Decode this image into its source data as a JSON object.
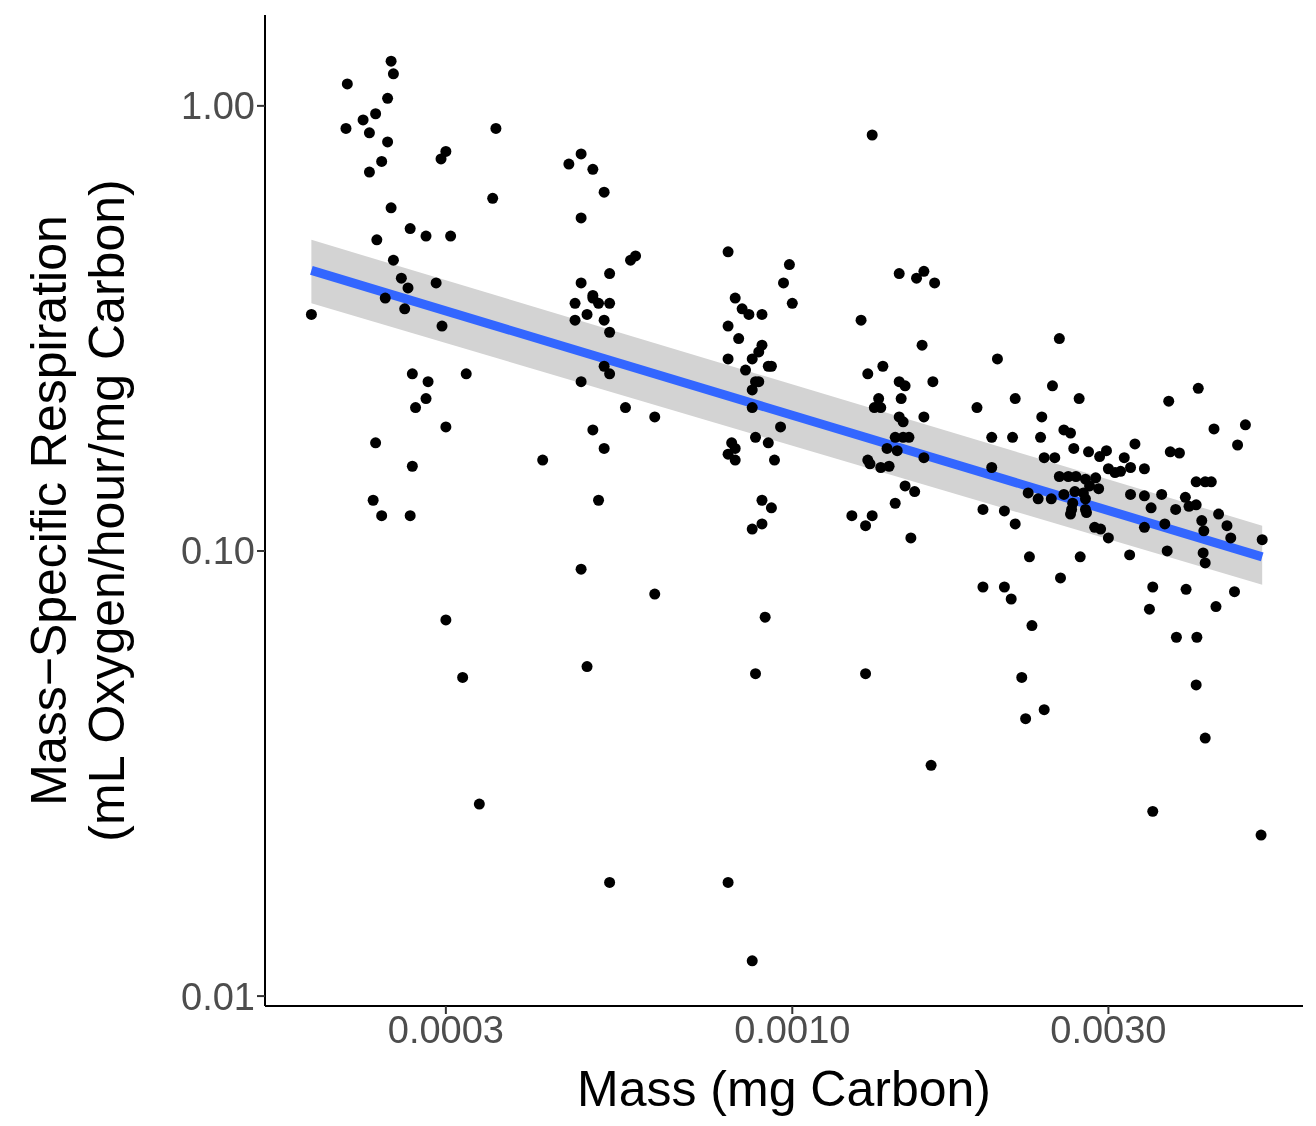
{
  "chart_data": {
    "type": "scatter",
    "xlabel": "Mass (mg Carbon)",
    "ylabel": "Mass−Specific Respiration\n(mL Oxygen/hour/mg Carbon)",
    "log": "xy",
    "marker": "circle",
    "xlim": [
      0.00016,
      0.0059
    ],
    "ylim": [
      0.0095,
      1.6
    ],
    "xticks": [
      {
        "value": 0.0003,
        "label": "0.0003"
      },
      {
        "value": 0.001,
        "label": "0.0010"
      },
      {
        "value": 0.003,
        "label": "0.0030"
      }
    ],
    "yticks": [
      {
        "value": 0.01,
        "label": "0.01"
      },
      {
        "value": 0.1,
        "label": "0.10"
      },
      {
        "value": 1,
        "label": "1.00"
      }
    ],
    "series": [
      {
        "color": "#000000",
        "x": [
          0.000188,
          0.000213,
          0.000212,
          0.000225,
          0.00023,
          0.000235,
          0.00023,
          0.00024,
          0.000245,
          0.000245,
          0.000248,
          0.00025,
          0.000236,
          0.000248,
          0.00025,
          0.000257,
          0.000263,
          0.000243,
          0.00026,
          0.000265,
          0.00028,
          0.00029,
          0.000296,
          0.000295,
          0.0003,
          0.000305,
          0.000235,
          0.000233,
          0.00024,
          0.000267,
          0.000265,
          0.000267,
          0.000282,
          0.00027,
          0.00028,
          0.0003,
          0.000322,
          0.000353,
          0.000357,
          0.0003,
          0.000318,
          0.000337,
          0.00046,
          0.00048,
          0.0005,
          0.00052,
          0.00048,
          0.00048,
          0.00047,
          0.00047,
          0.00049,
          0.0005,
          0.0005,
          0.00051,
          0.00053,
          0.00053,
          0.00052,
          0.00053,
          0.00052,
          0.00053,
          0.00048,
          0.00056,
          0.00057,
          0.00058,
          0.00042,
          0.0005,
          0.00052,
          0.00051,
          0.00062,
          0.00048,
          0.00049,
          0.00062,
          0.00053,
          0.0008,
          0.00082,
          0.00084,
          0.00086,
          0.0009,
          0.0008,
          0.00083,
          0.0009,
          0.00089,
          0.0008,
          0.00087,
          0.00085,
          0.00092,
          0.00093,
          0.00088,
          0.00087,
          0.00089,
          0.00087,
          0.00096,
          0.00081,
          0.00082,
          0.0008,
          0.00082,
          0.00088,
          0.00092,
          0.00094,
          0.0009,
          0.00093,
          0.0009,
          0.00087,
          0.00097,
          0.00099,
          0.001,
          0.00091,
          0.00088,
          0.0008,
          0.00087,
          0.00132,
          0.00127,
          0.0013,
          0.00137,
          0.00136,
          0.00133,
          0.00135,
          0.00145,
          0.00148,
          0.00146,
          0.00145,
          0.00147,
          0.00143,
          0.00147,
          0.0015,
          0.00139,
          0.00144,
          0.0014,
          0.0013,
          0.00131,
          0.00136,
          0.00148,
          0.00153,
          0.00157,
          0.00158,
          0.00158,
          0.00163,
          0.00145,
          0.00154,
          0.00158,
          0.00164,
          0.00123,
          0.00129,
          0.00132,
          0.00143,
          0.00151,
          0.00129,
          0.00162,
          0.0019,
          0.00204,
          0.00217,
          0.002,
          0.00215,
          0.002,
          0.00194,
          0.00209,
          0.00217,
          0.00194,
          0.00209,
          0.00214,
          0.00228,
          0.0023,
          0.00222,
          0.00225,
          0.0024,
          0.00238,
          0.00247,
          0.00253,
          0.00271,
          0.00257,
          0.00263,
          0.00237,
          0.0024,
          0.00249,
          0.00266,
          0.0028,
          0.00291,
          0.00298,
          0.00253,
          0.00261,
          0.00268,
          0.00277,
          0.00287,
          0.003,
          0.00227,
          0.00235,
          0.00257,
          0.00267,
          0.00275,
          0.00281,
          0.0029,
          0.00246,
          0.00265,
          0.00277,
          0.00264,
          0.00277,
          0.00263,
          0.00278,
          0.00286,
          0.00292,
          0.003,
          0.00272,
          0.00254,
          0.00313,
          0.00307,
          0.00317,
          0.00329,
          0.00324,
          0.0034,
          0.00324,
          0.0034,
          0.00361,
          0.00372,
          0.00384,
          0.0037,
          0.0041,
          0.00348,
          0.0034,
          0.00323,
          0.00365,
          0.00379,
          0.00392,
          0.00397,
          0.00407,
          0.00407,
          0.0042,
          0.00429,
          0.00415,
          0.00418,
          0.00417,
          0.0042,
          0.0044,
          0.00453,
          0.00459,
          0.00433,
          0.0047,
          0.00483,
          0.00512,
          0.00368,
          0.0035,
          0.00346,
          0.00393,
          0.0038,
          0.00408,
          0.00436,
          0.00465,
          0.00407,
          0.0042,
          0.0035,
          0.0051
        ],
        "values": [
          0.34,
          1.12,
          0.89,
          0.93,
          0.87,
          0.96,
          0.71,
          0.75,
          0.83,
          1.04,
          1.26,
          1.18,
          0.5,
          0.59,
          0.45,
          0.41,
          0.39,
          0.37,
          0.35,
          0.53,
          0.51,
          0.4,
          0.32,
          0.76,
          0.79,
          0.51,
          0.175,
          0.13,
          0.12,
          0.155,
          0.12,
          0.25,
          0.24,
          0.21,
          0.22,
          0.19,
          0.25,
          0.62,
          0.89,
          0.07,
          0.052,
          0.027,
          0.74,
          0.78,
          0.72,
          0.64,
          0.56,
          0.4,
          0.36,
          0.33,
          0.34,
          0.37,
          0.375,
          0.36,
          0.42,
          0.36,
          0.33,
          0.31,
          0.26,
          0.25,
          0.24,
          0.21,
          0.45,
          0.46,
          0.16,
          0.187,
          0.17,
          0.13,
          0.2,
          0.091,
          0.055,
          0.08,
          0.018,
          0.47,
          0.37,
          0.35,
          0.34,
          0.34,
          0.32,
          0.3,
          0.29,
          0.28,
          0.27,
          0.27,
          0.255,
          0.26,
          0.26,
          0.24,
          0.23,
          0.24,
          0.21,
          0.19,
          0.175,
          0.17,
          0.165,
          0.16,
          0.18,
          0.175,
          0.16,
          0.13,
          0.125,
          0.115,
          0.112,
          0.4,
          0.44,
          0.36,
          0.071,
          0.053,
          0.018,
          0.012,
          0.86,
          0.33,
          0.25,
          0.26,
          0.21,
          0.21,
          0.22,
          0.24,
          0.235,
          0.22,
          0.2,
          0.195,
          0.18,
          0.18,
          0.18,
          0.17,
          0.168,
          0.155,
          0.16,
          0.157,
          0.154,
          0.14,
          0.136,
          0.29,
          0.2,
          0.162,
          0.24,
          0.42,
          0.41,
          0.425,
          0.4,
          0.12,
          0.114,
          0.12,
          0.128,
          0.107,
          0.053,
          0.033,
          0.21,
          0.27,
          0.22,
          0.18,
          0.18,
          0.154,
          0.124,
          0.123,
          0.115,
          0.083,
          0.083,
          0.078,
          0.097,
          0.068,
          0.052,
          0.042,
          0.044,
          0.2,
          0.235,
          0.3,
          0.22,
          0.187,
          0.184,
          0.18,
          0.162,
          0.162,
          0.17,
          0.167,
          0.163,
          0.168,
          0.147,
          0.147,
          0.147,
          0.145,
          0.146,
          0.153,
          0.135,
          0.131,
          0.134,
          0.136,
          0.135,
          0.14,
          0.138,
          0.131,
          0.128,
          0.131,
          0.124,
          0.124,
          0.121,
          0.122,
          0.113,
          0.112,
          0.107,
          0.097,
          0.087,
          0.151,
          0.15,
          0.162,
          0.174,
          0.154,
          0.153,
          0.134,
          0.133,
          0.134,
          0.167,
          0.166,
          0.217,
          0.232,
          0.125,
          0.113,
          0.098,
          0.115,
          0.124,
          0.132,
          0.126,
          0.143,
          0.127,
          0.143,
          0.143,
          0.117,
          0.111,
          0.099,
          0.094,
          0.121,
          0.114,
          0.107,
          0.188,
          0.173,
          0.192,
          0.106,
          0.1,
          0.083,
          0.074,
          0.082,
          0.064,
          0.064,
          0.075,
          0.081,
          0.05,
          0.038,
          0.026,
          0.023
        ]
      },
      {
        "type": "line",
        "marker": "none",
        "color": "#3366ff",
        "x": [
          0.000188,
          0.00512
        ],
        "values": [
          0.427,
          0.097
        ],
        "lower": [
          0.36,
          0.084
        ],
        "upper": [
          0.5,
          0.114
        ]
      }
    ]
  }
}
